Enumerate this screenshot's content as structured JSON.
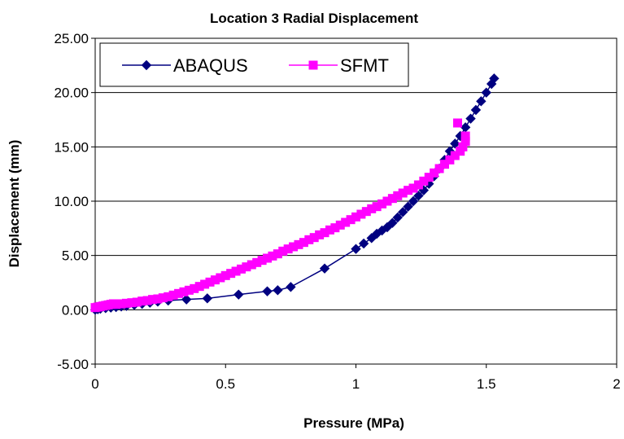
{
  "chart_data": {
    "type": "scatter",
    "title": "Location 3 Radial Displacement",
    "xlabel": "Pressure (MPa)",
    "ylabel": "Displacement (mm)",
    "xlim": [
      0,
      2
    ],
    "ylim": [
      -5,
      25
    ],
    "x_ticks": [
      "0",
      "0.5",
      "1",
      "1.5",
      "2"
    ],
    "y_ticks": [
      "-5.00",
      "0.00",
      "5.00",
      "10.00",
      "15.00",
      "20.00",
      "25.00"
    ],
    "grid": "horizontal",
    "legend_position": "top-left",
    "series": [
      {
        "name": "ABAQUS",
        "color": "#000080",
        "marker": "diamond",
        "line": true,
        "x": [
          0.0,
          0.01,
          0.02,
          0.04,
          0.06,
          0.08,
          0.1,
          0.12,
          0.15,
          0.18,
          0.21,
          0.24,
          0.28,
          0.35,
          0.43,
          0.55,
          0.66,
          0.7,
          0.75,
          0.88,
          1.0,
          1.03,
          1.06,
          1.08,
          1.1,
          1.12,
          1.14,
          1.16,
          1.18,
          1.2,
          1.22,
          1.24,
          1.26,
          1.28,
          1.3,
          1.32,
          1.34,
          1.36,
          1.38,
          1.4,
          1.42,
          1.44,
          1.46,
          1.48,
          1.5,
          1.52,
          1.53
        ],
        "y": [
          0.0,
          0.05,
          0.1,
          0.15,
          0.2,
          0.25,
          0.3,
          0.35,
          0.45,
          0.55,
          0.65,
          0.75,
          0.85,
          0.95,
          1.05,
          1.4,
          1.7,
          1.8,
          2.1,
          3.8,
          5.6,
          6.1,
          6.6,
          7.0,
          7.3,
          7.6,
          8.0,
          8.5,
          9.0,
          9.5,
          10.0,
          10.5,
          11.0,
          11.6,
          12.3,
          13.0,
          13.8,
          14.6,
          15.3,
          16.0,
          16.8,
          17.6,
          18.4,
          19.2,
          20.0,
          20.8,
          21.3
        ]
      },
      {
        "name": "SFMT",
        "color": "#FF00FF",
        "marker": "square",
        "line": false,
        "x": [
          0.0,
          0.01,
          0.02,
          0.03,
          0.04,
          0.05,
          0.06,
          0.07,
          0.08,
          0.1,
          0.12,
          0.14,
          0.16,
          0.18,
          0.2,
          0.22,
          0.24,
          0.26,
          0.28,
          0.3,
          0.32,
          0.34,
          0.36,
          0.38,
          0.4,
          0.42,
          0.44,
          0.46,
          0.48,
          0.5,
          0.52,
          0.54,
          0.56,
          0.58,
          0.6,
          0.62,
          0.64,
          0.66,
          0.68,
          0.7,
          0.72,
          0.74,
          0.76,
          0.78,
          0.8,
          0.82,
          0.84,
          0.86,
          0.88,
          0.9,
          0.92,
          0.94,
          0.96,
          0.98,
          1.0,
          1.02,
          1.04,
          1.06,
          1.08,
          1.1,
          1.12,
          1.14,
          1.16,
          1.18,
          1.2,
          1.22,
          1.24,
          1.26,
          1.28,
          1.3,
          1.32,
          1.34,
          1.36,
          1.38,
          1.4,
          1.41,
          1.42,
          1.42,
          1.39
        ],
        "y": [
          0.2,
          0.25,
          0.3,
          0.35,
          0.4,
          0.45,
          0.5,
          0.55,
          0.5,
          0.55,
          0.6,
          0.65,
          0.7,
          0.8,
          0.85,
          0.95,
          1.0,
          1.1,
          1.2,
          1.35,
          1.5,
          1.65,
          1.8,
          1.95,
          2.15,
          2.35,
          2.55,
          2.75,
          2.95,
          3.15,
          3.35,
          3.55,
          3.75,
          3.95,
          4.15,
          4.35,
          4.55,
          4.75,
          4.95,
          5.15,
          5.4,
          5.6,
          5.8,
          6.0,
          6.2,
          6.45,
          6.65,
          6.9,
          7.1,
          7.35,
          7.55,
          7.8,
          8.05,
          8.3,
          8.55,
          8.8,
          9.05,
          9.3,
          9.5,
          9.75,
          10.0,
          10.25,
          10.5,
          10.75,
          11.0,
          11.2,
          11.5,
          11.85,
          12.2,
          12.6,
          13.0,
          13.4,
          13.8,
          14.2,
          14.6,
          15.0,
          15.5,
          16.0,
          17.2
        ]
      }
    ]
  }
}
